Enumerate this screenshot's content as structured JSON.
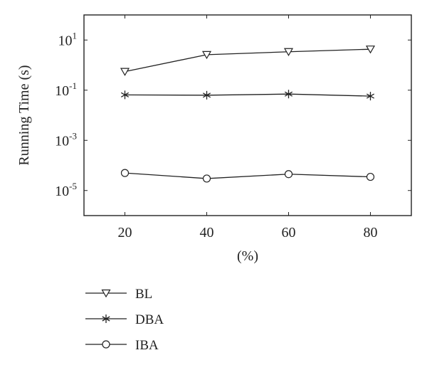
{
  "chart_data": {
    "type": "line",
    "x": [
      20,
      40,
      60,
      80
    ],
    "xlabel": "(%)",
    "ylabel": "Running Time (s)",
    "xlim": [
      10,
      90
    ],
    "ylim": [
      1e-06,
      100
    ],
    "yscale": "log",
    "x_ticks": [
      "20",
      "40",
      "60",
      "80"
    ],
    "y_ticks": [
      {
        "value": 10,
        "base": "10",
        "exp": "1"
      },
      {
        "value": 0.1,
        "base": "10",
        "exp": "-1"
      },
      {
        "value": 0.001,
        "base": "10",
        "exp": "-3"
      },
      {
        "value": 1e-05,
        "base": "10",
        "exp": "-5"
      }
    ],
    "grid": false,
    "legend_position": "below plot",
    "series": [
      {
        "name": "BL",
        "marker": "triangle-down",
        "values": [
          0.55,
          2.6,
          3.4,
          4.3
        ]
      },
      {
        "name": "DBA",
        "marker": "asterisk",
        "values": [
          0.065,
          0.063,
          0.07,
          0.058
        ]
      },
      {
        "name": "IBA",
        "marker": "circle",
        "values": [
          5e-05,
          3e-05,
          4.5e-05,
          3.5e-05
        ]
      }
    ],
    "colors": {
      "line": "#222222",
      "background": "#ffffff"
    }
  }
}
